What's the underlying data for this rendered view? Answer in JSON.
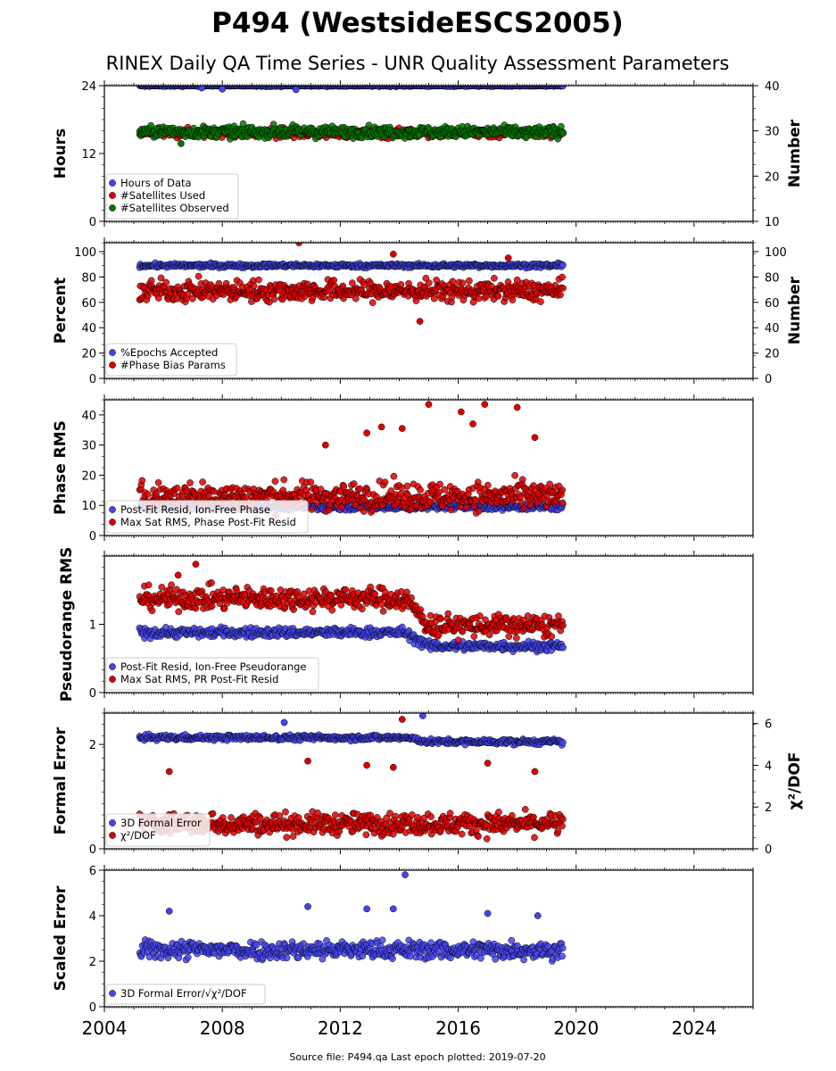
{
  "figure": {
    "title": "P494 (WestsideESCS2005)",
    "subtitle": "RINEX Daily QA Time Series - UNR Quality Assessment Parameters",
    "footer": "Source file: P494.qa Last epoch plotted: 2019-07-20",
    "x_ticks": [
      "2004",
      "2008",
      "2012",
      "2016",
      "2020",
      "2024"
    ]
  },
  "chart_data": [
    {
      "type": "scatter",
      "xlim": [
        2004,
        2026
      ],
      "x_range_data": [
        2005.2,
        2019.55
      ],
      "ylabel": "Hours",
      "ylim": [
        0,
        24
      ],
      "yticks": [
        "0",
        "12",
        "24"
      ],
      "y2label": "Number",
      "y2lim": [
        10,
        40
      ],
      "y2ticks": [
        "10",
        "20",
        "30",
        "40"
      ],
      "legend_position": "lower-left",
      "series": [
        {
          "name": "Hours of Data",
          "color": "#4444ee",
          "axis": "left",
          "values": {
            "base": 24,
            "spread": 0.15,
            "outliers": [
              [
                2007.3,
                23.6
              ],
              [
                2008.0,
                23.4
              ],
              [
                2010.5,
                23.3
              ]
            ]
          }
        },
        {
          "name": "#Satellites Used",
          "color": "#dd0000",
          "axis": "right",
          "values": {
            "base": 29.5,
            "spread": 1.0,
            "outliers": [
              [
                2005.3,
                29.2
              ],
              [
                2009.6,
                30.0
              ]
            ]
          }
        },
        {
          "name": "#Satellites Observed",
          "color": "#007700",
          "axis": "right",
          "values": {
            "base": 29.8,
            "spread": 1.2,
            "outliers": [
              [
                2006.6,
                27.2
              ],
              [
                2018.3,
                28.5
              ]
            ]
          }
        }
      ]
    },
    {
      "type": "scatter",
      "xlim": [
        2004,
        2026
      ],
      "ylabel": "Percent",
      "ylim": [
        0,
        107
      ],
      "yticks": [
        "0",
        "20",
        "40",
        "60",
        "80",
        "100"
      ],
      "y2label": "Number",
      "y2lim": [
        0,
        107
      ],
      "y2ticks": [
        "0",
        "20",
        "40",
        "60",
        "80",
        "100"
      ],
      "legend_position": "lower-left",
      "series": [
        {
          "name": "%Epochs Accepted",
          "color": "#4444ee",
          "axis": "left",
          "values": {
            "base": 89,
            "spread": 1.5,
            "outliers": []
          }
        },
        {
          "name": "#Phase Bias Params",
          "color": "#dd0000",
          "axis": "right",
          "values": {
            "base": 69,
            "spread": 8,
            "outliers": [
              [
                2010.6,
                107
              ],
              [
                2014.7,
                45
              ],
              [
                2013.8,
                98
              ],
              [
                2017.7,
                95
              ]
            ]
          }
        }
      ]
    },
    {
      "type": "scatter",
      "xlim": [
        2004,
        2026
      ],
      "ylabel": "Phase RMS",
      "ylim": [
        0,
        45
      ],
      "yticks": [
        "0",
        "10",
        "20",
        "30",
        "40"
      ],
      "legend_position": "lower-left",
      "series": [
        {
          "name": "Post-Fit Resid, Ion-Free Phase",
          "color": "#4444ee",
          "axis": "left",
          "values": {
            "base": 9.5,
            "spread": 1.0,
            "outliers": []
          }
        },
        {
          "name": "Max Sat RMS, Phase Post-Fit Resid",
          "color": "#dd0000",
          "axis": "left",
          "values": {
            "base": 13,
            "spread": 4.5,
            "outliers": [
              [
                2015.0,
                43.5
              ],
              [
                2016.1,
                41
              ],
              [
                2016.9,
                43.5
              ],
              [
                2018.0,
                42.5
              ],
              [
                2016.5,
                37
              ],
              [
                2013.4,
                36
              ],
              [
                2012.9,
                34
              ],
              [
                2018.6,
                32.5
              ],
              [
                2011.5,
                30
              ],
              [
                2014.1,
                35.5
              ]
            ]
          }
        }
      ]
    },
    {
      "type": "scatter",
      "xlim": [
        2004,
        2026
      ],
      "ylabel": "Pseudorange RMS",
      "ylim": [
        0,
        2
      ],
      "yticks": [
        "0",
        "1"
      ],
      "legend_position": "lower-left",
      "series": [
        {
          "name": "Post-Fit Resid, Ion-Free Pseudorange",
          "color": "#4444ee",
          "axis": "left",
          "values": {
            "base_early": 0.88,
            "base_late": 0.68,
            "spread": 0.07,
            "outliers": []
          }
        },
        {
          "name": "Max Sat RMS, PR Post-Fit Resid",
          "color": "#dd0000",
          "axis": "left",
          "values": {
            "base_early": 1.38,
            "base_late": 0.98,
            "spread": 0.16,
            "outliers": [
              [
                2007.1,
                1.88
              ],
              [
                2006.5,
                1.72
              ]
            ]
          }
        }
      ]
    },
    {
      "type": "scatter",
      "xlim": [
        2004,
        2026
      ],
      "ylabel": "Formal Error",
      "ylim": [
        0,
        2.6
      ],
      "yticks": [
        "0",
        "2"
      ],
      "y2label": "χ²/DOF",
      "y2lim": [
        0,
        6.5
      ],
      "y2ticks": [
        "0",
        "2",
        "4",
        "6"
      ],
      "legend_position": "lower-left",
      "series": [
        {
          "name": "3D Formal Error",
          "color": "#4444ee",
          "axis": "left",
          "values": {
            "base_early": 2.13,
            "base_late": 2.05,
            "spread": 0.05,
            "outliers": [
              [
                2014.8,
                2.55
              ],
              [
                2010.1,
                2.42
              ]
            ]
          }
        },
        {
          "name": "χ²/DOF",
          "color": "#dd0000",
          "axis": "right",
          "values": {
            "base": 1.2,
            "spread": 0.5,
            "outliers": [
              [
                2014.1,
                6.2
              ],
              [
                2010.9,
                4.2
              ],
              [
                2012.9,
                4.0
              ],
              [
                2013.8,
                3.9
              ],
              [
                2017.0,
                4.1
              ],
              [
                2006.2,
                3.7
              ],
              [
                2018.6,
                3.7
              ]
            ]
          }
        }
      ]
    },
    {
      "type": "scatter",
      "xlim": [
        2004,
        2026
      ],
      "ylabel": "Scaled Error",
      "ylim": [
        0,
        6
      ],
      "yticks": [
        "0",
        "2",
        "4",
        "6"
      ],
      "legend_position": "lower-left",
      "series": [
        {
          "name": "3D Formal Error/√χ²/DOF",
          "color": "#4444ee",
          "axis": "left",
          "values": {
            "base": 2.5,
            "spread": 0.4,
            "outliers": [
              [
                2014.2,
                5.8
              ],
              [
                2012.9,
                4.3
              ],
              [
                2013.8,
                4.3
              ],
              [
                2010.9,
                4.4
              ],
              [
                2006.2,
                4.2
              ],
              [
                2017.0,
                4.1
              ],
              [
                2018.7,
                4.0
              ]
            ]
          }
        }
      ]
    }
  ]
}
